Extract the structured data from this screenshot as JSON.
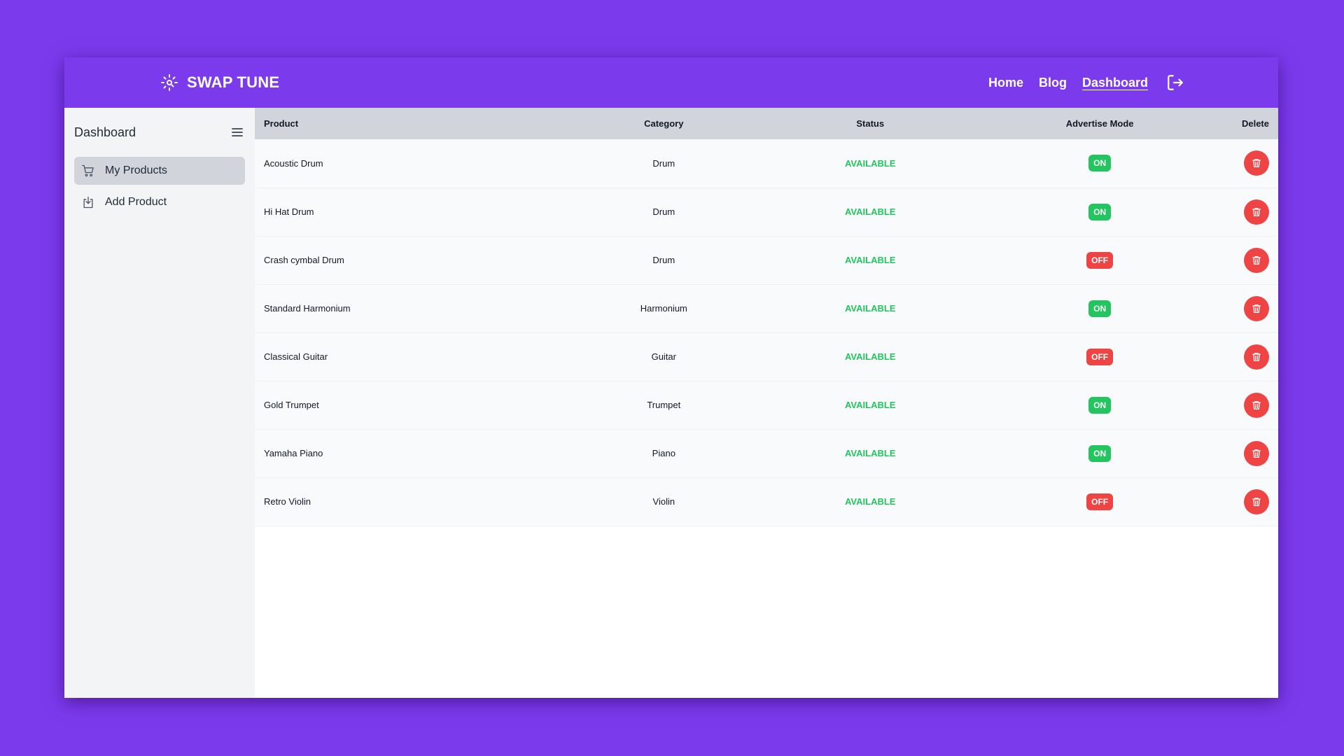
{
  "brand": {
    "name": "SWAP TUNE",
    "icon": "logo-icon"
  },
  "nav": {
    "links": [
      {
        "label": "Home",
        "active": false
      },
      {
        "label": "Blog",
        "active": false
      },
      {
        "label": "Dashboard",
        "active": true
      }
    ],
    "logout_icon": "logout-icon"
  },
  "sidebar": {
    "title": "Dashboard",
    "toggle_icon": "menu-icon",
    "items": [
      {
        "label": "My Products",
        "icon": "cart-icon",
        "active": true
      },
      {
        "label": "Add Product",
        "icon": "add-product-icon",
        "active": false
      }
    ]
  },
  "table": {
    "headers": {
      "product": "Product",
      "category": "Category",
      "status": "Status",
      "mode": "Advertise Mode",
      "delete": "Delete"
    },
    "rows": [
      {
        "product": "Acoustic Drum",
        "category": "Drum",
        "status": "AVAILABLE",
        "mode": "ON"
      },
      {
        "product": "Hi Hat Drum",
        "category": "Drum",
        "status": "AVAILABLE",
        "mode": "ON"
      },
      {
        "product": "Crash cymbal Drum",
        "category": "Drum",
        "status": "AVAILABLE",
        "mode": "OFF"
      },
      {
        "product": "Standard Harmonium",
        "category": "Harmonium",
        "status": "AVAILABLE",
        "mode": "ON"
      },
      {
        "product": "Classical Guitar",
        "category": "Guitar",
        "status": "AVAILABLE",
        "mode": "OFF"
      },
      {
        "product": "Gold Trumpet",
        "category": "Trumpet",
        "status": "AVAILABLE",
        "mode": "ON"
      },
      {
        "product": "Yamaha Piano",
        "category": "Piano",
        "status": "AVAILABLE",
        "mode": "ON"
      },
      {
        "product": "Retro Violin",
        "category": "Violin",
        "status": "AVAILABLE",
        "mode": "OFF"
      }
    ]
  },
  "colors": {
    "brand": "#7c3aed",
    "available": "#22c55e",
    "on": "#22c55e",
    "off": "#ef4444",
    "delete": "#ef4444"
  }
}
